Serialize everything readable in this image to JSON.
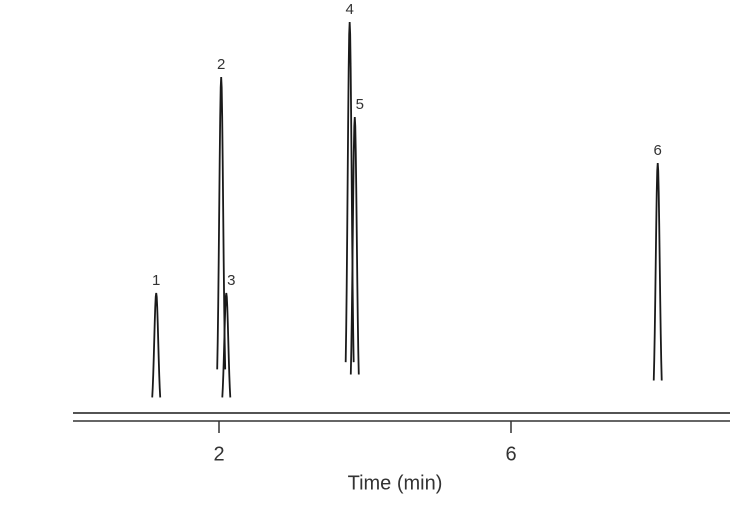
{
  "chart_data": {
    "type": "chromatogram",
    "x_label": "Time (min)",
    "xlim": [
      0,
      9
    ],
    "xticks": [
      2,
      6
    ],
    "ylim": [
      0,
      400
    ],
    "peak_labels": [
      "1",
      "2",
      "3",
      "4",
      "5",
      "6"
    ],
    "x": [
      1.14,
      2.03,
      2.1,
      3.79,
      3.86,
      8.01
    ],
    "values": [
      120,
      336,
      120,
      391,
      296,
      250
    ],
    "color": "#1a1a1a"
  }
}
